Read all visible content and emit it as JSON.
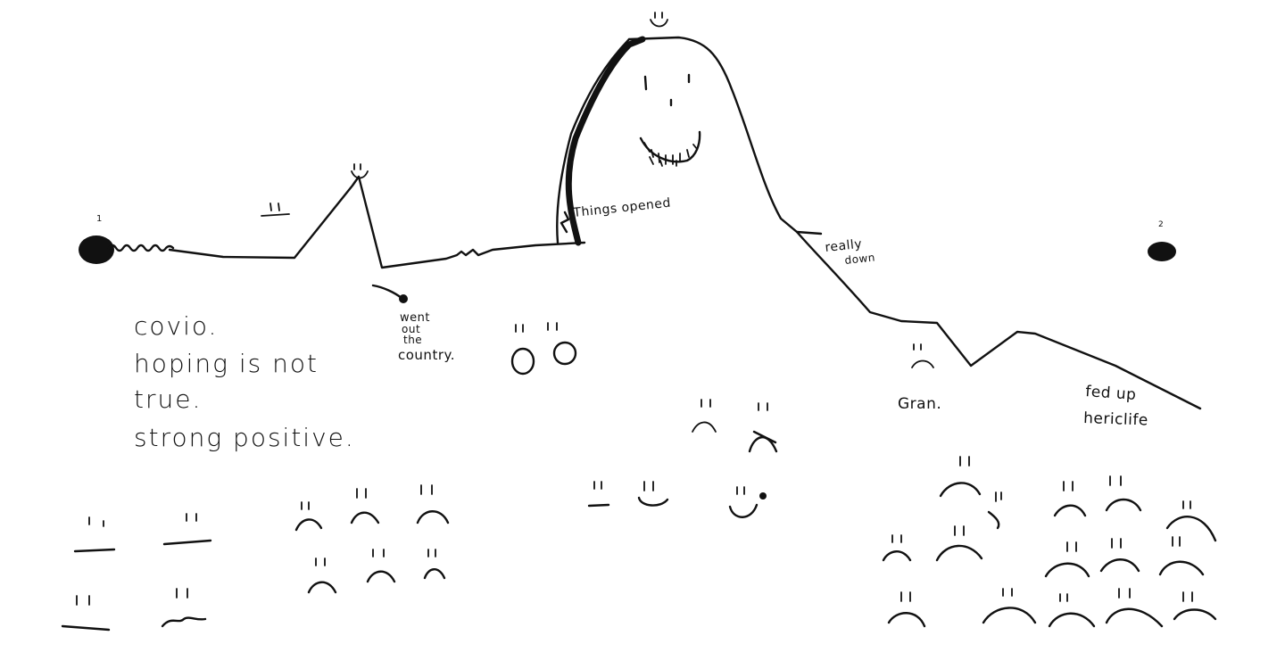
{
  "diagram": {
    "start_marker_label": "1",
    "end_marker_label": "2",
    "annotations": {
      "went_out_line1": "went",
      "went_out_line2": "out",
      "went_out_line3": "the",
      "went_out_line4": "country.",
      "things_opened": "Things opened",
      "really_down_line1": "really",
      "really_down_line2": "down",
      "gran": "Gran.",
      "fed_up_line1": "fed up",
      "fed_up_line2": "hericlife"
    },
    "notes": {
      "line1": "covio.",
      "line2": "hoping is not",
      "line3": "true.",
      "line4": "strong positive."
    }
  }
}
